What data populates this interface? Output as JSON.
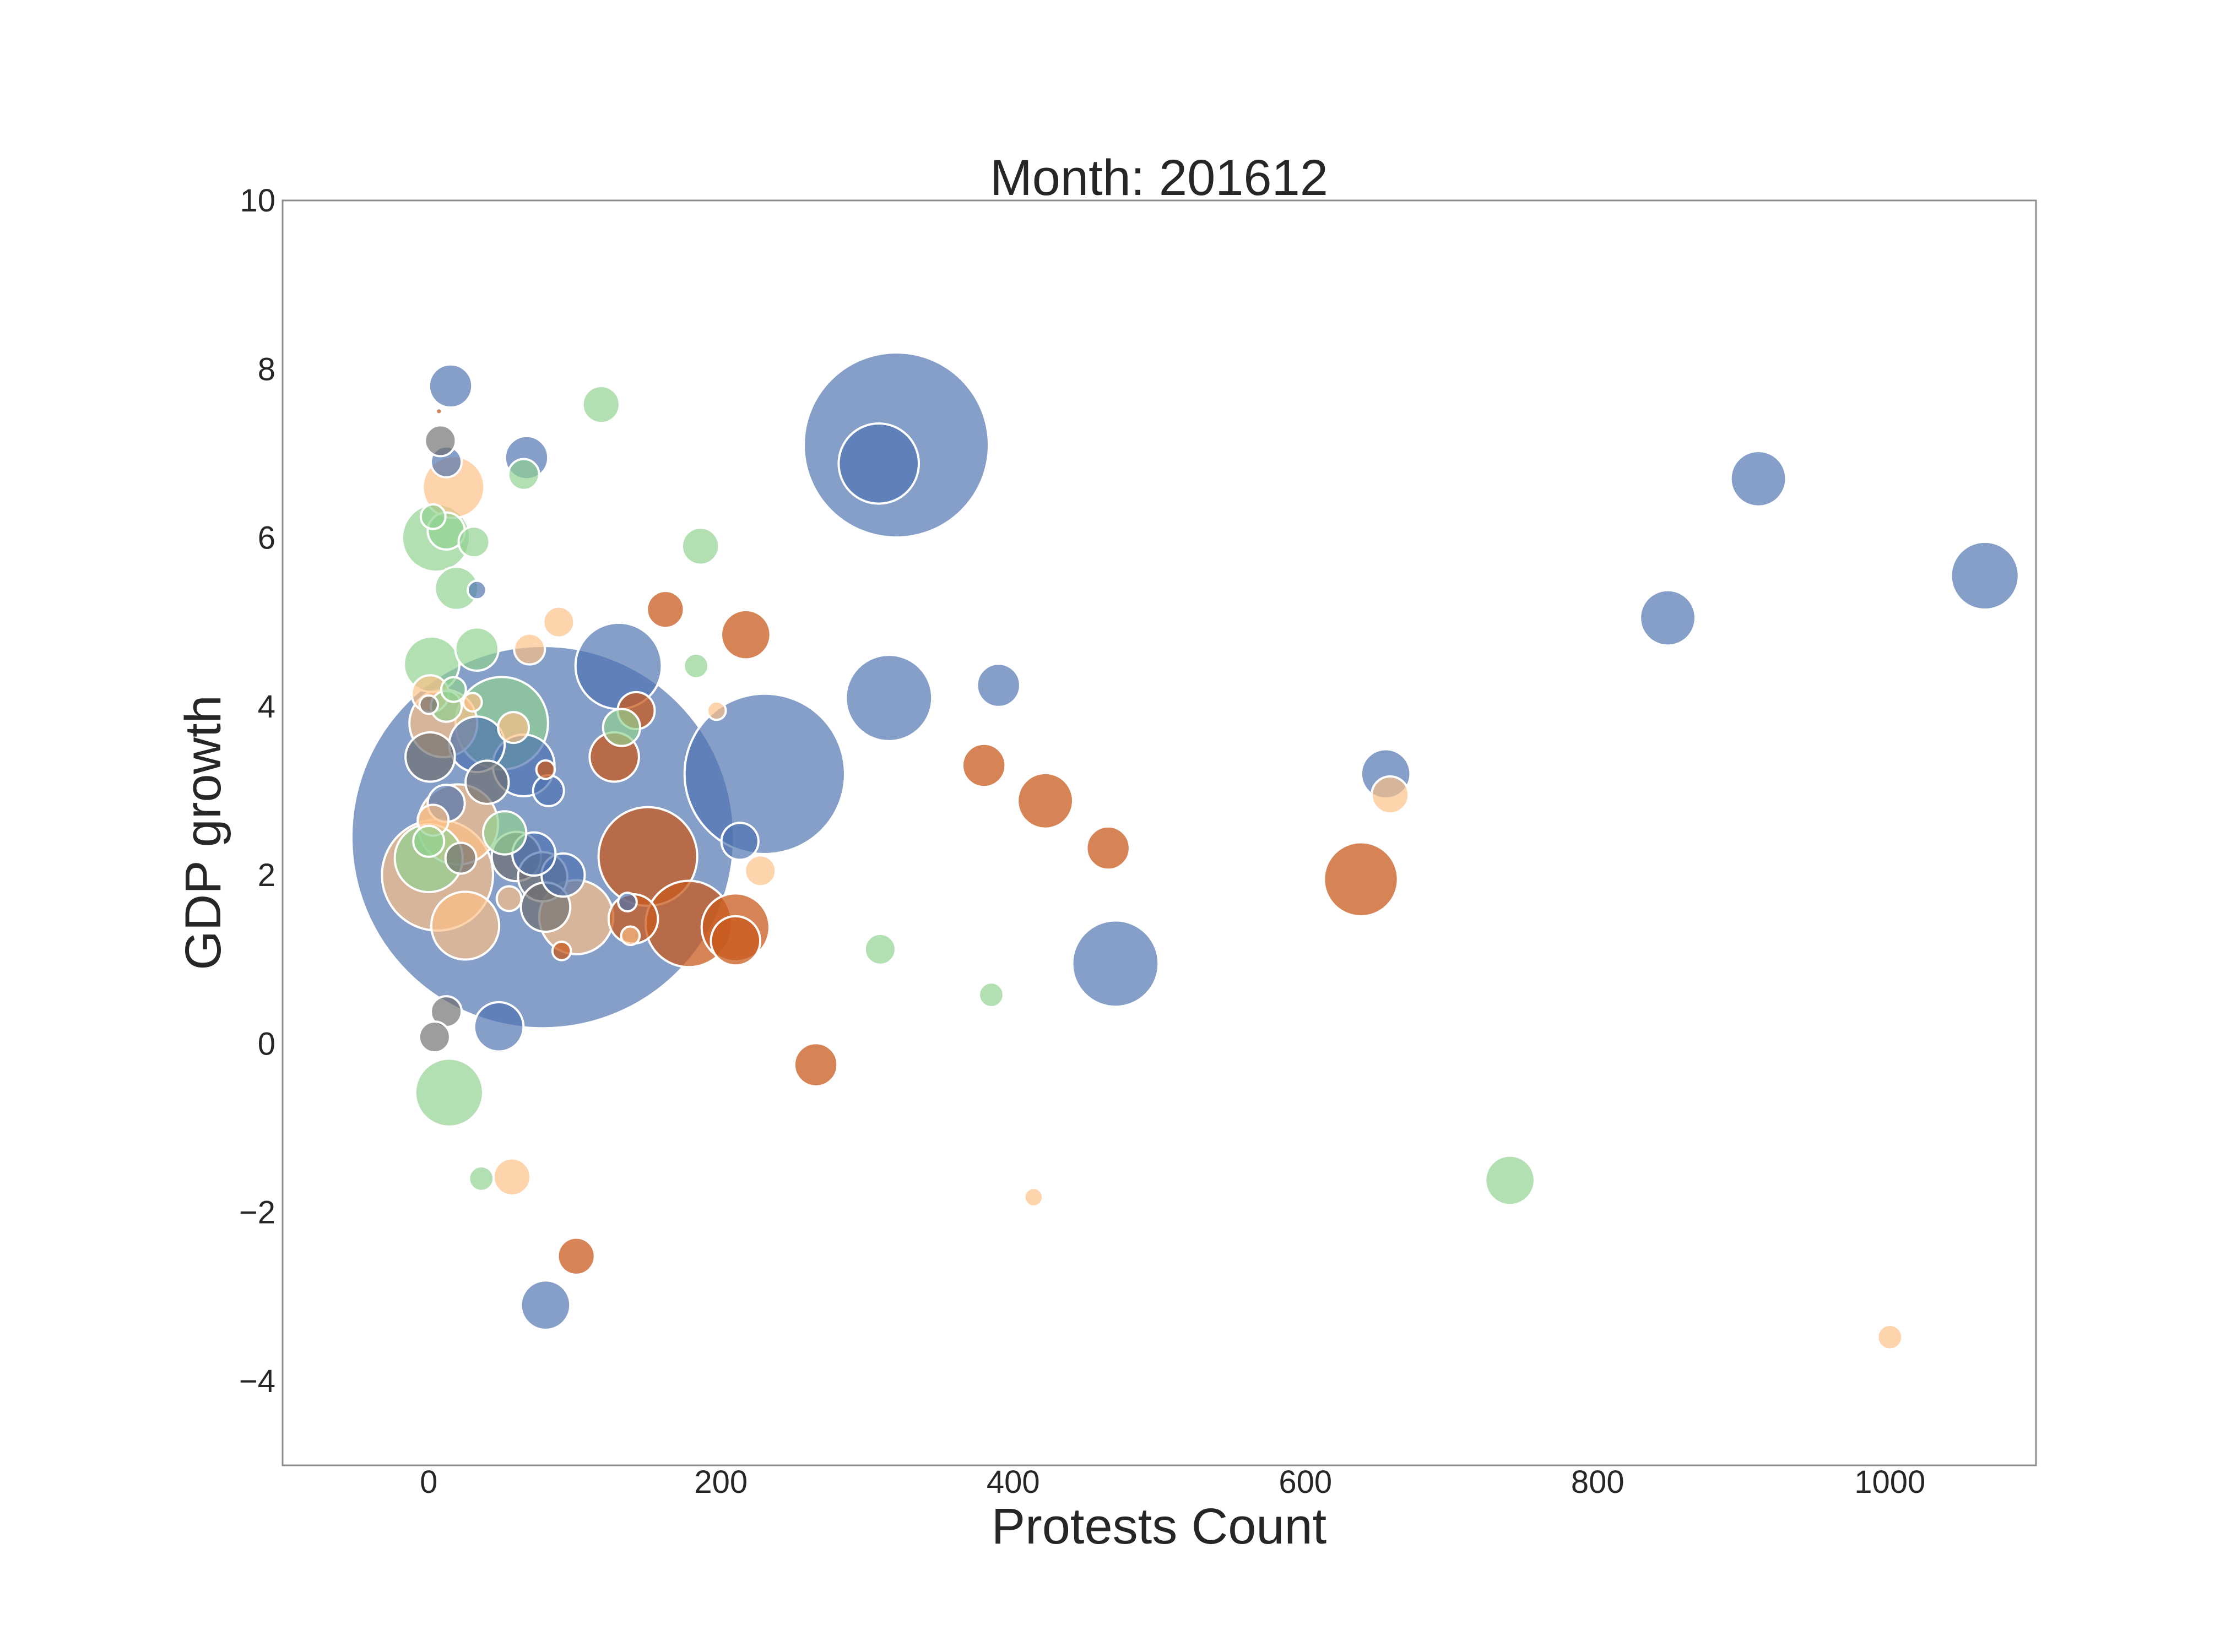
{
  "chart_data": {
    "type": "scatter",
    "title": "Month: 201612",
    "xlabel": "Protests Count",
    "ylabel": "GDP growth",
    "xlim": [
      -100,
      1100
    ],
    "ylim": [
      -5,
      10
    ],
    "xticks": [
      0,
      200,
      400,
      600,
      800,
      1000
    ],
    "yticks": [
      -4,
      -2,
      0,
      2,
      4,
      6,
      8,
      10
    ],
    "grid": false,
    "legend": "none",
    "colors": {
      "blue": "#4c72b0",
      "orange": "#c85a1e",
      "peach": "#fdbf85",
      "green": "#8fd18f",
      "gray": "#6e6e6e"
    },
    "points": [
      {
        "x": 78,
        "y": 2.45,
        "size": 62,
        "color": "blue"
      },
      {
        "x": 320,
        "y": 7.1,
        "size": 30,
        "color": "blue"
      },
      {
        "x": 230,
        "y": 3.2,
        "size": 26,
        "color": "blue"
      },
      {
        "x": 308,
        "y": 6.88,
        "size": 13,
        "color": "blue"
      },
      {
        "x": 315,
        "y": 4.1,
        "size": 14,
        "color": "blue"
      },
      {
        "x": 130,
        "y": 4.48,
        "size": 14,
        "color": "blue"
      },
      {
        "x": 470,
        "y": 0.95,
        "size": 14,
        "color": "blue"
      },
      {
        "x": 1065,
        "y": 5.55,
        "size": 11,
        "color": "blue"
      },
      {
        "x": 910,
        "y": 6.7,
        "size": 9,
        "color": "blue"
      },
      {
        "x": 848,
        "y": 5.05,
        "size": 9,
        "color": "blue"
      },
      {
        "x": 655,
        "y": 3.2,
        "size": 8,
        "color": "blue"
      },
      {
        "x": 390,
        "y": 4.25,
        "size": 7,
        "color": "blue"
      },
      {
        "x": 15,
        "y": 7.8,
        "size": 7,
        "color": "blue"
      },
      {
        "x": 67,
        "y": 6.95,
        "size": 7,
        "color": "blue"
      },
      {
        "x": 12,
        "y": 6.9,
        "size": 5,
        "color": "blue"
      },
      {
        "x": 33,
        "y": 3.55,
        "size": 9,
        "color": "blue"
      },
      {
        "x": 65,
        "y": 3.3,
        "size": 10,
        "color": "blue"
      },
      {
        "x": 12,
        "y": 2.85,
        "size": 6,
        "color": "blue"
      },
      {
        "x": 48,
        "y": 0.2,
        "size": 8,
        "color": "blue"
      },
      {
        "x": 80,
        "y": -3.1,
        "size": 8,
        "color": "blue"
      },
      {
        "x": 213,
        "y": 2.4,
        "size": 6,
        "color": "blue"
      },
      {
        "x": 92,
        "y": 2.0,
        "size": 7,
        "color": "blue"
      },
      {
        "x": 72,
        "y": 2.25,
        "size": 7,
        "color": "blue"
      },
      {
        "x": 82,
        "y": 3.0,
        "size": 5,
        "color": "blue"
      },
      {
        "x": 136,
        "y": 1.68,
        "size": 3,
        "color": "blue"
      },
      {
        "x": 33,
        "y": 5.38,
        "size": 3,
        "color": "blue"
      },
      {
        "x": 150,
        "y": 2.22,
        "size": 16,
        "color": "orange"
      },
      {
        "x": 178,
        "y": 1.42,
        "size": 14,
        "color": "orange"
      },
      {
        "x": 210,
        "y": 1.38,
        "size": 11,
        "color": "orange"
      },
      {
        "x": 210,
        "y": 1.22,
        "size": 8,
        "color": "orange"
      },
      {
        "x": 638,
        "y": 1.95,
        "size": 12,
        "color": "orange"
      },
      {
        "x": 422,
        "y": 2.88,
        "size": 9,
        "color": "orange"
      },
      {
        "x": 380,
        "y": 3.3,
        "size": 7,
        "color": "orange"
      },
      {
        "x": 465,
        "y": 2.32,
        "size": 7,
        "color": "orange"
      },
      {
        "x": 217,
        "y": 4.85,
        "size": 8,
        "color": "orange"
      },
      {
        "x": 162,
        "y": 5.15,
        "size": 6,
        "color": "orange"
      },
      {
        "x": 142,
        "y": 3.95,
        "size": 6,
        "color": "orange"
      },
      {
        "x": 127,
        "y": 3.4,
        "size": 8,
        "color": "orange"
      },
      {
        "x": 140,
        "y": 1.48,
        "size": 8,
        "color": "orange"
      },
      {
        "x": 265,
        "y": -0.25,
        "size": 7,
        "color": "orange"
      },
      {
        "x": 101,
        "y": -2.52,
        "size": 6,
        "color": "orange"
      },
      {
        "x": 80,
        "y": 3.25,
        "size": 3,
        "color": "orange"
      },
      {
        "x": 91,
        "y": 1.1,
        "size": 3,
        "color": "orange"
      },
      {
        "x": 7,
        "y": 7.5,
        "size": 1,
        "color": "orange"
      },
      {
        "x": 6,
        "y": 2.0,
        "size": 18,
        "color": "peach"
      },
      {
        "x": 20,
        "y": 2.6,
        "size": 13,
        "color": "peach"
      },
      {
        "x": 25,
        "y": 1.4,
        "size": 11,
        "color": "peach"
      },
      {
        "x": 17,
        "y": 6.6,
        "size": 10,
        "color": "peach"
      },
      {
        "x": 10,
        "y": 3.8,
        "size": 11,
        "color": "peach"
      },
      {
        "x": 101,
        "y": 1.5,
        "size": 12,
        "color": "peach"
      },
      {
        "x": 1,
        "y": 4.15,
        "size": 6,
        "color": "peach"
      },
      {
        "x": 89,
        "y": 5.0,
        "size": 5,
        "color": "peach"
      },
      {
        "x": 69,
        "y": 4.68,
        "size": 5,
        "color": "peach"
      },
      {
        "x": 227,
        "y": 2.05,
        "size": 5,
        "color": "peach"
      },
      {
        "x": 658,
        "y": 2.95,
        "size": 6,
        "color": "peach"
      },
      {
        "x": 57,
        "y": -1.58,
        "size": 6,
        "color": "peach"
      },
      {
        "x": 197,
        "y": 3.95,
        "size": 3,
        "color": "peach"
      },
      {
        "x": 414,
        "y": -1.82,
        "size": 3,
        "color": "peach"
      },
      {
        "x": 1000,
        "y": -3.48,
        "size": 4,
        "color": "peach"
      },
      {
        "x": 138,
        "y": 1.28,
        "size": 3,
        "color": "peach"
      },
      {
        "x": 55,
        "y": 1.72,
        "size": 4,
        "color": "peach"
      },
      {
        "x": 3,
        "y": 2.65,
        "size": 5,
        "color": "peach"
      },
      {
        "x": 58,
        "y": 3.75,
        "size": 5,
        "color": "peach"
      },
      {
        "x": 30,
        "y": 4.05,
        "size": 3,
        "color": "peach"
      },
      {
        "x": 50,
        "y": 3.8,
        "size": 15,
        "color": "green"
      },
      {
        "x": 5,
        "y": 6.0,
        "size": 11,
        "color": "green"
      },
      {
        "x": 0,
        "y": 2.2,
        "size": 11,
        "color": "green"
      },
      {
        "x": 14,
        "y": -0.58,
        "size": 11,
        "color": "green"
      },
      {
        "x": 2,
        "y": 4.5,
        "size": 9,
        "color": "green"
      },
      {
        "x": 33,
        "y": 4.68,
        "size": 7,
        "color": "green"
      },
      {
        "x": 19,
        "y": 5.4,
        "size": 7,
        "color": "green"
      },
      {
        "x": 12,
        "y": 6.08,
        "size": 6,
        "color": "green"
      },
      {
        "x": 132,
        "y": 3.75,
        "size": 6,
        "color": "green"
      },
      {
        "x": 118,
        "y": 7.58,
        "size": 6,
        "color": "green"
      },
      {
        "x": 186,
        "y": 5.9,
        "size": 6,
        "color": "green"
      },
      {
        "x": 65,
        "y": 6.75,
        "size": 5,
        "color": "green"
      },
      {
        "x": 31,
        "y": 5.95,
        "size": 5,
        "color": "green"
      },
      {
        "x": 183,
        "y": 4.48,
        "size": 4,
        "color": "green"
      },
      {
        "x": 309,
        "y": 1.12,
        "size": 5,
        "color": "green"
      },
      {
        "x": 385,
        "y": 0.58,
        "size": 4,
        "color": "green"
      },
      {
        "x": 740,
        "y": -1.62,
        "size": 8,
        "color": "green"
      },
      {
        "x": 36,
        "y": -1.6,
        "size": 4,
        "color": "green"
      },
      {
        "x": 52,
        "y": 2.5,
        "size": 7,
        "color": "green"
      },
      {
        "x": 0,
        "y": 2.4,
        "size": 5,
        "color": "green"
      },
      {
        "x": 12,
        "y": 4.0,
        "size": 5,
        "color": "green"
      },
      {
        "x": 17,
        "y": 4.2,
        "size": 4,
        "color": "green"
      },
      {
        "x": 3,
        "y": 6.25,
        "size": 4,
        "color": "green"
      },
      {
        "x": 1,
        "y": 3.4,
        "size": 8,
        "color": "gray"
      },
      {
        "x": 40,
        "y": 3.1,
        "size": 7,
        "color": "gray"
      },
      {
        "x": 60,
        "y": 2.22,
        "size": 8,
        "color": "gray"
      },
      {
        "x": 78,
        "y": 1.98,
        "size": 8,
        "color": "gray"
      },
      {
        "x": 80,
        "y": 1.62,
        "size": 8,
        "color": "gray"
      },
      {
        "x": 8,
        "y": 7.15,
        "size": 5,
        "color": "gray"
      },
      {
        "x": 12,
        "y": 0.38,
        "size": 5,
        "color": "gray"
      },
      {
        "x": 4,
        "y": 0.08,
        "size": 5,
        "color": "gray"
      },
      {
        "x": 22,
        "y": 2.2,
        "size": 5,
        "color": "gray"
      },
      {
        "x": 0,
        "y": 4.02,
        "size": 3,
        "color": "gray"
      }
    ]
  }
}
